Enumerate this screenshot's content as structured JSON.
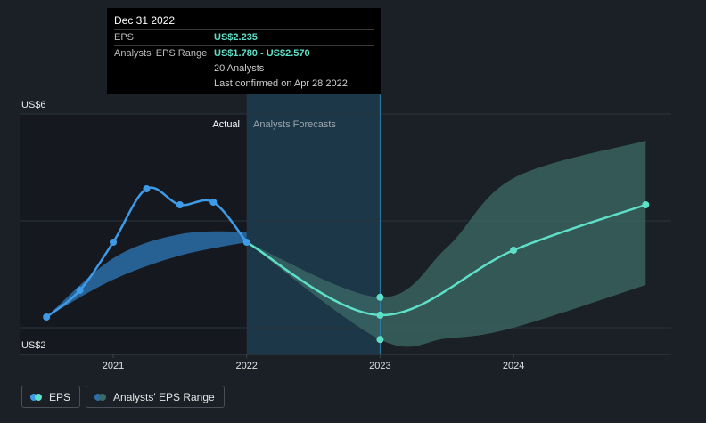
{
  "chart_data": {
    "type": "line",
    "y_axis": {
      "labels": [
        "US$6",
        "US$2"
      ],
      "min": 2,
      "max": 6
    },
    "x_axis": {
      "ticks": [
        "2021",
        "2022",
        "2023",
        "2024"
      ]
    },
    "sections": {
      "actual": "Actual",
      "forecast": "Analysts Forecasts"
    },
    "series": [
      {
        "name": "EPS",
        "color": "#3d9be9",
        "x": [
          2020.5,
          2020.75,
          2021.0,
          2021.25,
          2021.5,
          2021.75,
          2022.0
        ],
        "values": [
          2.2,
          2.7,
          3.6,
          4.6,
          4.3,
          4.35,
          3.6
        ]
      },
      {
        "name": "EPS",
        "color": "#5ee0c8",
        "x": [
          2022.0,
          2023.0,
          2024.0,
          2024.99
        ],
        "values": [
          3.6,
          2.235,
          3.45,
          4.3
        ]
      }
    ],
    "past_range": {
      "x": [
        2020.5,
        2021.0,
        2021.5,
        2022.0
      ],
      "low": [
        2.2,
        2.9,
        3.35,
        3.6
      ],
      "high": [
        2.2,
        3.3,
        3.75,
        3.8
      ]
    },
    "forecast_range": {
      "name": "Analysts' EPS Range",
      "x": [
        2022.0,
        2023.0,
        2023.5,
        2024.0,
        2024.99
      ],
      "low": [
        3.6,
        1.78,
        1.8,
        2.0,
        2.8
      ],
      "high": [
        3.6,
        2.57,
        3.5,
        4.8,
        5.5
      ]
    }
  },
  "tooltip": {
    "title": "Dec 31 2022",
    "eps_label": "EPS",
    "eps_value": "US$2.235",
    "range_label": "Analysts' EPS Range",
    "range_value": "US$1.780 - US$2.570",
    "analysts": "20 Analysts",
    "confirmed": "Last confirmed on Apr 28 2022"
  },
  "legend": {
    "eps": "EPS",
    "range": "Analysts' EPS Range"
  },
  "colors": {
    "actual_line": "#3d9be9",
    "forecast_line": "#5ee0c8",
    "past_band": "#2a6fa8",
    "forecast_band": "#3c6b67"
  }
}
